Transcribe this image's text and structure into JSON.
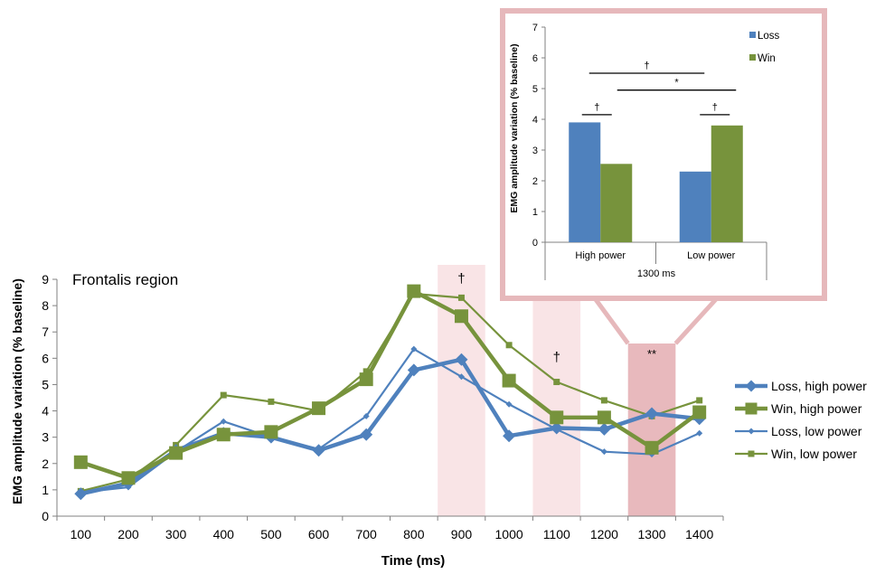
{
  "chart_data": [
    {
      "type": "line",
      "title": "Frontalis region",
      "xlabel": "Time (ms)",
      "ylabel": "EMG amplitude variation (% baseline)",
      "x": [
        100,
        200,
        300,
        400,
        500,
        600,
        700,
        800,
        900,
        1000,
        1100,
        1200,
        1300,
        1400
      ],
      "ylim": [
        0,
        9
      ],
      "yticks": [
        0,
        1,
        2,
        3,
        4,
        5,
        6,
        7,
        8,
        9
      ],
      "grid": false,
      "legend_position": "right",
      "series": [
        {
          "name": "Loss, high power",
          "color": "#4f81bd",
          "marker": "diamond",
          "weight": "thick",
          "values": [
            0.85,
            1.25,
            2.5,
            3.15,
            3.0,
            2.5,
            3.1,
            5.55,
            5.95,
            3.05,
            3.35,
            3.3,
            3.9,
            3.7
          ]
        },
        {
          "name": "Win, high power",
          "color": "#77933c",
          "marker": "square",
          "weight": "thick",
          "values": [
            2.05,
            1.45,
            2.4,
            3.1,
            3.2,
            4.1,
            5.2,
            8.55,
            7.6,
            5.15,
            3.75,
            3.75,
            2.6,
            3.95
          ]
        },
        {
          "name": "Loss, low power",
          "color": "#4f81bd",
          "marker": "diamond",
          "weight": "thin",
          "values": [
            0.9,
            1.1,
            2.45,
            3.6,
            3.0,
            2.55,
            3.8,
            6.35,
            5.3,
            4.25,
            3.3,
            2.45,
            2.35,
            3.15
          ]
        },
        {
          "name": "Win, low power",
          "color": "#77933c",
          "marker": "square",
          "weight": "thin",
          "values": [
            0.95,
            1.4,
            2.7,
            4.6,
            4.35,
            4.0,
            5.5,
            8.45,
            8.3,
            6.5,
            5.1,
            4.4,
            3.8,
            4.4
          ]
        }
      ],
      "highlights": [
        {
          "x": 900,
          "label": "†",
          "color": "#f9e4e6"
        },
        {
          "x": 1100,
          "label": "†",
          "color": "#f9e4e6"
        },
        {
          "x": 1300,
          "label": "**",
          "color": "#e8b9bd"
        }
      ]
    },
    {
      "type": "bar",
      "ylabel": "EMG amplitude variation (% baseline)",
      "xlabel": "1300 ms",
      "categories": [
        "High power",
        "Low power"
      ],
      "ylim": [
        0,
        7
      ],
      "yticks": [
        0,
        1,
        2,
        3,
        4,
        5,
        6,
        7
      ],
      "legend_position": "top-right",
      "series": [
        {
          "name": "Loss",
          "color": "#4f81bd",
          "values": [
            3.9,
            2.3
          ]
        },
        {
          "name": "Win",
          "color": "#77933c",
          "values": [
            2.55,
            3.8
          ]
        }
      ],
      "significance": [
        {
          "label": "†",
          "between": "High power Loss vs High power Win",
          "level": 4.15
        },
        {
          "label": "†",
          "between": "Low power Loss vs Low power Win",
          "level": 4.15
        },
        {
          "label": "†",
          "between": "High power Loss vs Low power Loss",
          "level": 5.5
        },
        {
          "label": "*",
          "between": "High power Win vs Low power Win",
          "level": 4.95
        }
      ]
    }
  ]
}
